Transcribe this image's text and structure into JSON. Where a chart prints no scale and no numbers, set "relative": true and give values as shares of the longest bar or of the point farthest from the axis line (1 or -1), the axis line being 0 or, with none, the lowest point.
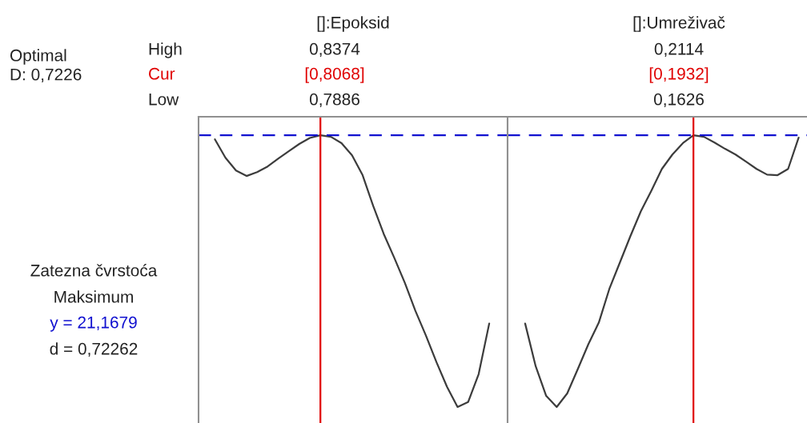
{
  "chart_data": [
    {
      "type": "line",
      "title": "[]:Epoksid",
      "relative": true,
      "line_style": "solid",
      "categories": [
        null,
        null,
        null,
        null,
        null,
        null,
        null,
        null,
        null,
        null,
        null,
        null,
        null,
        null,
        null,
        null,
        null,
        null,
        null,
        null,
        null,
        null,
        null,
        null,
        null,
        null,
        null
      ],
      "series": [
        {
          "color": "#3c3c3c",
          "values": [
            0.985,
            0.917,
            0.87,
            0.85,
            0.864,
            0.885,
            0.914,
            0.941,
            0.968,
            0.99,
            1.0,
            0.994,
            0.971,
            0.926,
            0.853,
            0.74,
            0.637,
            0.549,
            0.457,
            0.354,
            0.263,
            0.165,
            0.074,
            0.0,
            0.018,
            0.121,
            0.307
          ]
        }
      ],
      "ref_lines": [
        {
          "axis": "y",
          "value": 1.0,
          "color": "#1010d0",
          "line_style": "dashed"
        }
      ],
      "annotations": [
        "Optimal\nD: 0,7226",
        "High",
        "Cur",
        "Low",
        "0,8374",
        "0,7886",
        "Zatezna čvrstoća",
        "Maksimum",
        "y = 21,1679",
        "d = 0,72262",
        "[0,8068]"
      ]
    },
    {
      "type": "line",
      "title": "[]:Umreživač",
      "relative": true,
      "line_style": "solid",
      "categories": [
        null,
        null,
        null,
        null,
        null,
        null,
        null,
        null,
        null,
        null,
        null,
        null,
        null,
        null,
        null,
        null,
        null,
        null,
        null,
        null,
        null,
        null,
        null,
        null,
        null,
        null,
        null
      ],
      "series": [
        {
          "color": "#3c3c3c",
          "values": [
            0.307,
            0.15,
            0.041,
            0.0,
            0.05,
            0.139,
            0.23,
            0.31,
            0.434,
            0.531,
            0.628,
            0.72,
            0.796,
            0.876,
            0.929,
            0.971,
            1.0,
            0.994,
            0.973,
            0.95,
            0.929,
            0.903,
            0.876,
            0.855,
            0.853,
            0.876,
            0.991
          ]
        }
      ],
      "ref_lines": [
        {
          "axis": "y",
          "value": 1.0,
          "color": "#1010d0",
          "line_style": "dashed"
        }
      ],
      "annotations": [
        "0,2114",
        "0,1626",
        "[0,1932]"
      ]
    }
  ]
}
